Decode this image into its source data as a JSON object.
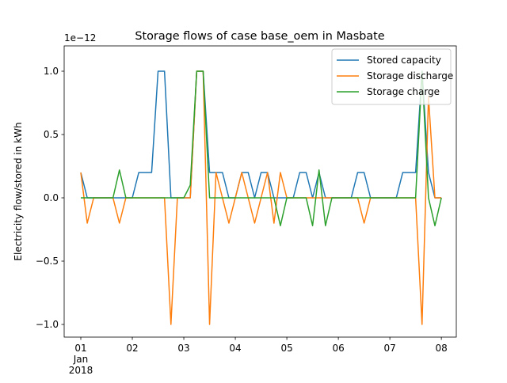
{
  "chart_data": {
    "type": "line",
    "title": "Storage flows of case base_oem in Masbate",
    "ylabel": "Electricity flow/stored in kWh",
    "y_offset_label": "1e−12",
    "x": [
      0,
      0.125,
      0.25,
      0.375,
      0.5,
      0.625,
      0.75,
      0.875,
      1,
      1.125,
      1.25,
      1.375,
      1.5,
      1.625,
      1.75,
      1.875,
      2,
      2.125,
      2.25,
      2.375,
      2.5,
      2.625,
      2.75,
      2.875,
      3,
      3.125,
      3.25,
      3.375,
      3.5,
      3.625,
      3.75,
      3.875,
      4,
      4.125,
      4.25,
      4.375,
      4.5,
      4.625,
      4.75,
      4.875,
      5,
      5.125,
      5.25,
      5.375,
      5.5,
      5.625,
      5.75,
      5.875,
      6,
      6.125,
      6.25,
      6.375,
      6.5,
      6.625,
      6.75,
      6.875,
      7
    ],
    "series": [
      {
        "name": "Stored capacity",
        "color": "#1f77b4",
        "values": [
          0.2,
          0,
          0,
          0,
          0,
          0,
          0,
          0,
          0,
          0.2,
          0.2,
          0.2,
          1,
          1,
          0,
          0,
          0,
          0,
          1,
          1,
          0.2,
          0.2,
          0.2,
          0,
          0,
          0.2,
          0.2,
          0,
          0.2,
          0.2,
          0,
          0,
          0,
          0,
          0.2,
          0.2,
          0,
          0.2,
          0,
          0,
          0,
          0,
          0,
          0.2,
          0.2,
          0,
          0,
          0,
          0,
          0,
          0.2,
          0.2,
          0.2,
          1,
          0.2,
          0,
          0
        ]
      },
      {
        "name": "Storage discharge",
        "color": "#ff7f0e",
        "values": [
          0.2,
          -0.2,
          0,
          0,
          0,
          0,
          -0.2,
          0,
          0,
          0,
          0,
          0,
          0,
          0,
          -1,
          0,
          0,
          0,
          1,
          1,
          -1,
          0.2,
          0,
          -0.2,
          0,
          0.2,
          0,
          -0.2,
          0,
          0.2,
          -0.2,
          0.2,
          0,
          0,
          0,
          0,
          0,
          0,
          0,
          0,
          0,
          0,
          0,
          0,
          -0.2,
          0,
          0,
          0,
          0,
          0,
          0,
          0,
          0,
          -1,
          0.8,
          0,
          0
        ]
      },
      {
        "name": "Storage charge",
        "color": "#2ca02c",
        "values": [
          0,
          0,
          0,
          0,
          0,
          0,
          0.22,
          0,
          0,
          0,
          0,
          0,
          0,
          0,
          0,
          0,
          0,
          0.1,
          1,
          1,
          0,
          0,
          0,
          0,
          0,
          0,
          0,
          0,
          0,
          0,
          0,
          -0.22,
          0,
          0,
          0,
          0,
          -0.22,
          0.22,
          -0.22,
          0,
          0,
          0,
          0,
          0,
          0,
          0,
          0,
          0,
          0,
          0,
          0,
          0,
          0,
          1,
          0,
          -0.22,
          0
        ]
      }
    ],
    "xlim": [
      -0.323,
      7.29
    ],
    "xticks": [
      {
        "value": 0,
        "label": "01\nJan\n2018"
      },
      {
        "value": 1,
        "label": "02"
      },
      {
        "value": 2,
        "label": "03"
      },
      {
        "value": 3,
        "label": "04"
      },
      {
        "value": 4,
        "label": "05"
      },
      {
        "value": 5,
        "label": "06"
      },
      {
        "value": 6,
        "label": "07"
      },
      {
        "value": 7,
        "label": "08"
      }
    ],
    "ylim": [
      -1.1,
      1.2
    ],
    "yticks": [
      {
        "value": -1,
        "label": "−1.0"
      },
      {
        "value": -0.5,
        "label": "−0.5"
      },
      {
        "value": 0,
        "label": "0.0"
      },
      {
        "value": 0.5,
        "label": "0.5"
      },
      {
        "value": 1,
        "label": "1.0"
      }
    ],
    "legend": "upper right"
  }
}
